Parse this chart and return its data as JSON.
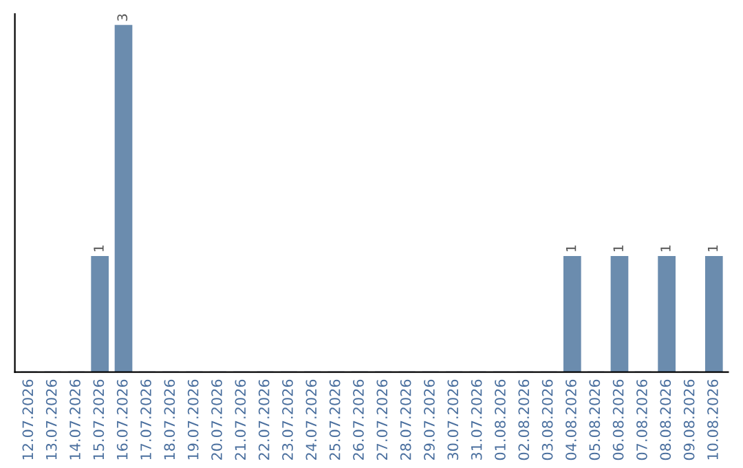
{
  "chart_data": {
    "type": "bar",
    "categories": [
      "12.07.2026",
      "13.07.2026",
      "14.07.2026",
      "15.07.2026",
      "16.07.2026",
      "17.07.2026",
      "18.07.2026",
      "19.07.2026",
      "20.07.2026",
      "21.07.2026",
      "22.07.2026",
      "23.07.2026",
      "24.07.2026",
      "25.07.2026",
      "26.07.2026",
      "27.07.2026",
      "28.07.2026",
      "29.07.2026",
      "30.07.2026",
      "31.07.2026",
      "01.08.2026",
      "02.08.2026",
      "03.08.2026",
      "04.08.2026",
      "05.08.2026",
      "06.08.2026",
      "07.08.2026",
      "08.08.2026",
      "09.08.2026",
      "10.08.2026"
    ],
    "values": [
      0,
      0,
      0,
      1,
      3,
      0,
      0,
      0,
      0,
      0,
      0,
      0,
      0,
      0,
      0,
      0,
      0,
      0,
      0,
      0,
      0,
      0,
      0,
      1,
      0,
      1,
      0,
      1,
      0,
      1
    ],
    "value_labels": [
      null,
      null,
      null,
      "1",
      "3",
      null,
      null,
      null,
      null,
      null,
      null,
      null,
      null,
      null,
      null,
      null,
      null,
      null,
      null,
      null,
      null,
      null,
      null,
      "1",
      null,
      "1",
      null,
      "1",
      null,
      "1"
    ],
    "color": "#6b8cae",
    "ylim": [
      0,
      3.1
    ],
    "tick_labels": "x",
    "grid": false,
    "legend": false
  }
}
